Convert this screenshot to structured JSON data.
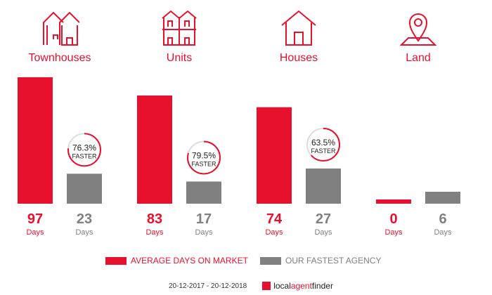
{
  "chart_data": {
    "type": "bar",
    "categories": [
      "Townhouses",
      "Units",
      "Houses",
      "Land"
    ],
    "series": [
      {
        "name": "AVERAGE DAYS ON MARKET",
        "values": [
          97,
          83,
          74,
          0
        ],
        "color": "#e8112d"
      },
      {
        "name": "OUR FASTEST AGENCY",
        "values": [
          23,
          17,
          27,
          6
        ],
        "color": "#808080"
      }
    ],
    "unit_label": "Days",
    "faster": [
      "76.3%",
      "79.5%",
      "63.5%",
      null
    ],
    "faster_label": "FASTER",
    "icons": [
      "townhouse-icon",
      "units-icon",
      "house-icon",
      "land-pin-icon"
    ]
  },
  "footer": {
    "date_range": "20-12-2017 - 20-12-2018",
    "logo_local": "local",
    "logo_agent": "agent",
    "logo_finder": "finder"
  }
}
